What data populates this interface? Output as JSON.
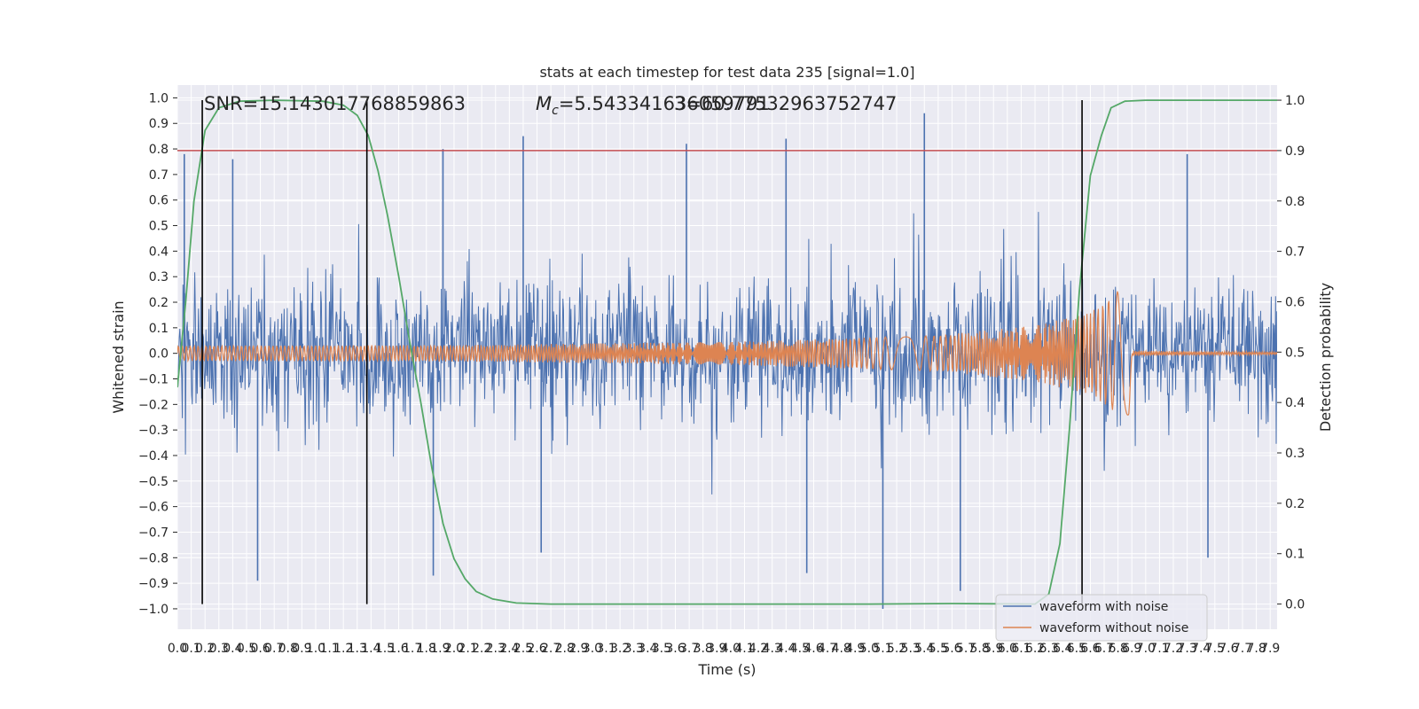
{
  "chart_data": {
    "type": "line",
    "title": "stats at each timestep for test data 235 [signal=1.0]",
    "xlabel": "Time (s)",
    "ylabel": "Whitened strain",
    "y2label": "Detection probability",
    "xlim": [
      0.0,
      7.95
    ],
    "ylim": [
      -1.08,
      1.05
    ],
    "y2lim": [
      -0.05,
      1.03
    ],
    "x_tick_step": 0.1,
    "y_ticks": [
      -1.0,
      -0.9,
      -0.8,
      -0.7,
      -0.6,
      -0.5,
      -0.4,
      -0.3,
      -0.2,
      -0.1,
      0.0,
      0.1,
      0.2,
      0.3,
      0.4,
      0.5,
      0.6,
      0.7,
      0.8,
      0.9,
      1.0
    ],
    "y_tick_labels": [
      "−1.0",
      "−0.9",
      "−0.8",
      "−0.7",
      "−0.6",
      "−0.5",
      "−0.4",
      "−0.3",
      "−0.2",
      "−0.1",
      "0.0",
      "0.1",
      "0.2",
      "0.3",
      "0.4",
      "0.5",
      "0.6",
      "0.7",
      "0.8",
      "0.9",
      "1.0"
    ],
    "y2_ticks": [
      0.0,
      0.1,
      0.2,
      0.3,
      0.4,
      0.5,
      0.6,
      0.7,
      0.8,
      0.9,
      1.0
    ],
    "y2_tick_labels": [
      "0.0",
      "0.1",
      "0.2",
      "0.3",
      "0.4",
      "0.5",
      "0.6",
      "0.7",
      "0.8",
      "0.9",
      "1.0"
    ],
    "grid": true,
    "legend": "bottom-right",
    "annotations": {
      "snr": "SNR=15.143017768859863",
      "mc_prefix": "M",
      "mc_subscript": "c",
      "mc_value": "=5.543341636059791",
      "overlap_value": "3=60.77532963752747"
    },
    "threshold_line": {
      "y2": 0.9,
      "color": "#c44e52"
    },
    "vertical_markers_s": [
      0.18,
      1.37,
      6.54
    ],
    "series": [
      {
        "name": "waveform with noise",
        "color": "#4c72b0",
        "description_range": [
          -1.0,
          0.95
        ],
        "sample_spikes": [
          {
            "x": 0.05,
            "y": 0.78
          },
          {
            "x": 0.4,
            "y": 0.76
          },
          {
            "x": 0.58,
            "y": -0.89
          },
          {
            "x": 1.85,
            "y": -0.87
          },
          {
            "x": 1.92,
            "y": 0.8
          },
          {
            "x": 2.5,
            "y": 0.85
          },
          {
            "x": 2.63,
            "y": -0.78
          },
          {
            "x": 3.68,
            "y": 0.82
          },
          {
            "x": 4.4,
            "y": 0.84
          },
          {
            "x": 4.55,
            "y": -0.86
          },
          {
            "x": 5.1,
            "y": -1.0
          },
          {
            "x": 5.4,
            "y": 0.94
          },
          {
            "x": 5.66,
            "y": -0.93
          },
          {
            "x": 7.3,
            "y": 0.78
          },
          {
            "x": 7.45,
            "y": -0.8
          }
        ]
      },
      {
        "name": "waveform without noise",
        "color": "#dd8452",
        "envelope": [
          {
            "x": 0.0,
            "y": 0.03
          },
          {
            "x": 2.0,
            "y": 0.032
          },
          {
            "x": 4.0,
            "y": 0.045
          },
          {
            "x": 5.5,
            "y": 0.07
          },
          {
            "x": 6.2,
            "y": 0.11
          },
          {
            "x": 6.6,
            "y": 0.16
          },
          {
            "x": 6.78,
            "y": 0.23
          },
          {
            "x": 6.88,
            "y": 0.31
          },
          {
            "x": 6.9,
            "y": 0.01
          },
          {
            "x": 7.95,
            "y": 0.005
          }
        ]
      },
      {
        "name": "detection probability",
        "color": "#55a868",
        "axis": "y2",
        "points": [
          {
            "x": 0.0,
            "y": 0.43
          },
          {
            "x": 0.06,
            "y": 0.6
          },
          {
            "x": 0.12,
            "y": 0.8
          },
          {
            "x": 0.2,
            "y": 0.94
          },
          {
            "x": 0.3,
            "y": 0.985
          },
          {
            "x": 0.45,
            "y": 0.998
          },
          {
            "x": 0.7,
            "y": 1.0
          },
          {
            "x": 1.05,
            "y": 0.998
          },
          {
            "x": 1.2,
            "y": 0.99
          },
          {
            "x": 1.3,
            "y": 0.97
          },
          {
            "x": 1.38,
            "y": 0.93
          },
          {
            "x": 1.45,
            "y": 0.86
          },
          {
            "x": 1.52,
            "y": 0.77
          },
          {
            "x": 1.6,
            "y": 0.65
          },
          {
            "x": 1.68,
            "y": 0.52
          },
          {
            "x": 1.76,
            "y": 0.4
          },
          {
            "x": 1.84,
            "y": 0.27
          },
          {
            "x": 1.92,
            "y": 0.16
          },
          {
            "x": 2.0,
            "y": 0.09
          },
          {
            "x": 2.08,
            "y": 0.05
          },
          {
            "x": 2.16,
            "y": 0.025
          },
          {
            "x": 2.28,
            "y": 0.01
          },
          {
            "x": 2.45,
            "y": 0.002
          },
          {
            "x": 2.7,
            "y": 0.0
          },
          {
            "x": 5.0,
            "y": 0.0
          },
          {
            "x": 5.6,
            "y": 0.001
          },
          {
            "x": 6.2,
            "y": 0.0
          },
          {
            "x": 6.3,
            "y": 0.02
          },
          {
            "x": 6.38,
            "y": 0.12
          },
          {
            "x": 6.45,
            "y": 0.35
          },
          {
            "x": 6.52,
            "y": 0.62
          },
          {
            "x": 6.6,
            "y": 0.85
          },
          {
            "x": 6.68,
            "y": 0.93
          },
          {
            "x": 6.75,
            "y": 0.985
          },
          {
            "x": 6.85,
            "y": 0.998
          },
          {
            "x": 7.0,
            "y": 1.0
          },
          {
            "x": 7.95,
            "y": 1.0
          }
        ]
      }
    ]
  }
}
